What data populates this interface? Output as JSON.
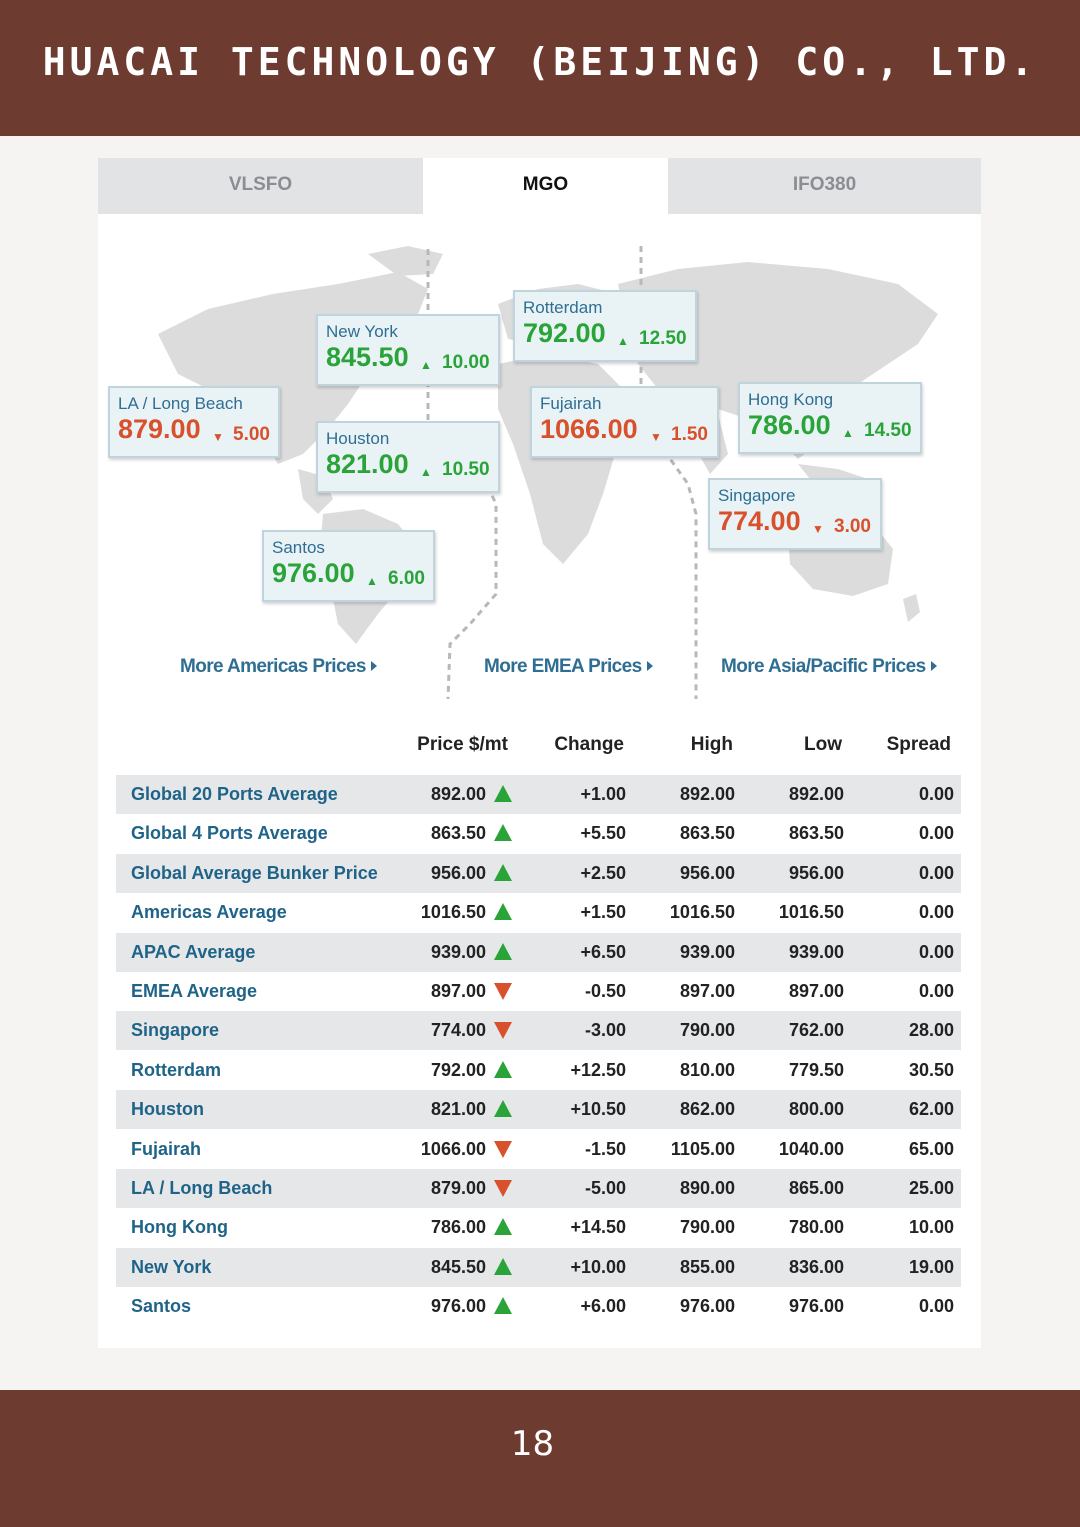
{
  "header": {
    "title": "HUACAI TECHNOLOGY (BEIJING) CO., LTD."
  },
  "footer": {
    "page_number": "18"
  },
  "tabs": [
    {
      "label": "VLSFO",
      "active": false
    },
    {
      "label": "MGO",
      "active": true
    },
    {
      "label": "IFO380",
      "active": false
    }
  ],
  "map_ports": [
    {
      "name": "LA / Long Beach",
      "price": "879.00",
      "change": "5.00",
      "direction": "down"
    },
    {
      "name": "New York",
      "price": "845.50",
      "change": "10.00",
      "direction": "up"
    },
    {
      "name": "Houston",
      "price": "821.00",
      "change": "10.50",
      "direction": "up"
    },
    {
      "name": "Santos",
      "price": "976.00",
      "change": "6.00",
      "direction": "up"
    },
    {
      "name": "Rotterdam",
      "price": "792.00",
      "change": "12.50",
      "direction": "up"
    },
    {
      "name": "Fujairah",
      "price": "1066.00",
      "change": "1.50",
      "direction": "down"
    },
    {
      "name": "Hong Kong",
      "price": "786.00",
      "change": "14.50",
      "direction": "up"
    },
    {
      "name": "Singapore",
      "price": "774.00",
      "change": "3.00",
      "direction": "down"
    }
  ],
  "links": {
    "americas": "More Americas Prices",
    "emea": "More EMEA Prices",
    "apac": "More Asia/Pacific Prices"
  },
  "table": {
    "headers": [
      "Price $/mt",
      "Change",
      "High",
      "Low",
      "Spread"
    ],
    "rows": [
      {
        "name": "Global 20 Ports Average",
        "price": "892.00",
        "direction": "up",
        "change": "+1.00",
        "high": "892.00",
        "low": "892.00",
        "spread": "0.00"
      },
      {
        "name": "Global 4 Ports Average",
        "price": "863.50",
        "direction": "up",
        "change": "+5.50",
        "high": "863.50",
        "low": "863.50",
        "spread": "0.00"
      },
      {
        "name": "Global Average Bunker Price",
        "price": "956.00",
        "direction": "up",
        "change": "+2.50",
        "high": "956.00",
        "low": "956.00",
        "spread": "0.00"
      },
      {
        "name": "Americas Average",
        "price": "1016.50",
        "direction": "up",
        "change": "+1.50",
        "high": "1016.50",
        "low": "1016.50",
        "spread": "0.00"
      },
      {
        "name": "APAC Average",
        "price": "939.00",
        "direction": "up",
        "change": "+6.50",
        "high": "939.00",
        "low": "939.00",
        "spread": "0.00"
      },
      {
        "name": "EMEA Average",
        "price": "897.00",
        "direction": "down",
        "change": "-0.50",
        "high": "897.00",
        "low": "897.00",
        "spread": "0.00"
      },
      {
        "name": "Singapore",
        "price": "774.00",
        "direction": "down",
        "change": "-3.00",
        "high": "790.00",
        "low": "762.00",
        "spread": "28.00"
      },
      {
        "name": "Rotterdam",
        "price": "792.00",
        "direction": "up",
        "change": "+12.50",
        "high": "810.00",
        "low": "779.50",
        "spread": "30.50"
      },
      {
        "name": "Houston",
        "price": "821.00",
        "direction": "up",
        "change": "+10.50",
        "high": "862.00",
        "low": "800.00",
        "spread": "62.00"
      },
      {
        "name": "Fujairah",
        "price": "1066.00",
        "direction": "down",
        "change": "-1.50",
        "high": "1105.00",
        "low": "1040.00",
        "spread": "65.00"
      },
      {
        "name": "LA / Long Beach",
        "price": "879.00",
        "direction": "down",
        "change": "-5.00",
        "high": "890.00",
        "low": "865.00",
        "spread": "25.00"
      },
      {
        "name": "Hong Kong",
        "price": "786.00",
        "direction": "up",
        "change": "+14.50",
        "high": "790.00",
        "low": "780.00",
        "spread": "10.00"
      },
      {
        "name": "New York",
        "price": "845.50",
        "direction": "up",
        "change": "+10.00",
        "high": "855.00",
        "low": "836.00",
        "spread": "19.00"
      },
      {
        "name": "Santos",
        "price": "976.00",
        "direction": "up",
        "change": "+6.00",
        "high": "976.00",
        "low": "976.00",
        "spread": "0.00"
      }
    ]
  },
  "colors": {
    "band": "#6e3b30",
    "up": "#2aa339",
    "down": "#d9512c",
    "link": "#2f6e93"
  }
}
